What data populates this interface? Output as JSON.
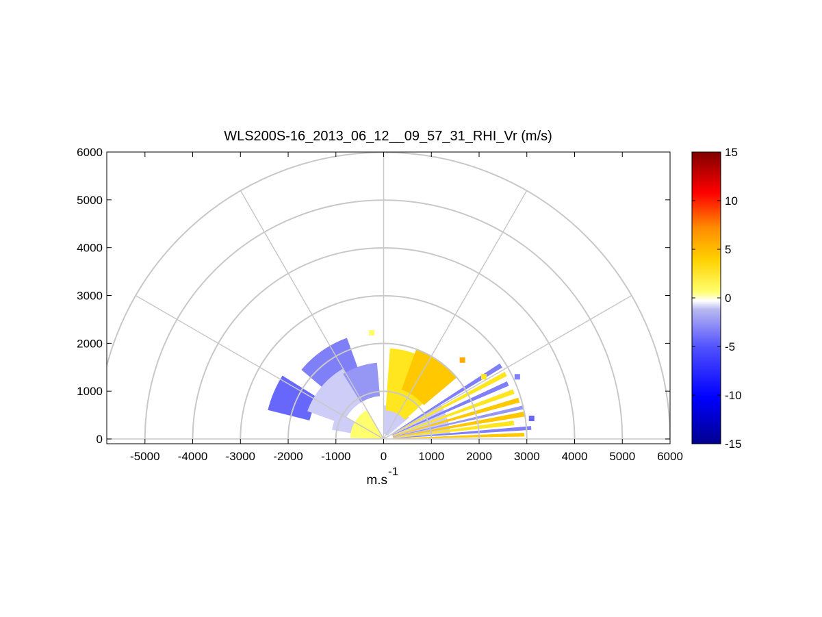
{
  "chart_data": {
    "type": "heatmap",
    "subtype": "polar-rhi-scan",
    "title": "WLS200S-16_2013_06_12__09_57_31_RHI_Vr (m/s)",
    "xlabel_base": "m.s",
    "xlabel_exponent": "-1",
    "xlim": [
      -5800,
      6000
    ],
    "ylim": [
      -100,
      6000
    ],
    "x_ticks": [
      -5000,
      -4000,
      -3000,
      -2000,
      -1000,
      0,
      1000,
      2000,
      3000,
      4000,
      5000,
      6000
    ],
    "x_tick_labels": [
      "-5000",
      "-4000",
      "-3000",
      "-2000",
      "-1000",
      "0",
      "1000",
      "2000",
      "3000",
      "4000",
      "5000",
      "6000"
    ],
    "y_ticks": [
      0,
      1000,
      2000,
      3000,
      4000,
      5000,
      6000
    ],
    "y_tick_labels": [
      "0",
      "1000",
      "2000",
      "3000",
      "4000",
      "5000",
      "6000"
    ],
    "polar_grid": {
      "rings": [
        1000,
        2000,
        3000,
        4000,
        5000,
        6000
      ],
      "spokes_deg": [
        0,
        30,
        60,
        90,
        120,
        150,
        180
      ]
    },
    "colorbar": {
      "min": -15,
      "max": 15,
      "ticks": [
        15,
        10,
        5,
        0,
        -5,
        -10,
        -15
      ],
      "tick_labels": [
        "15",
        "10",
        "5",
        "0",
        "-5",
        "-10",
        "-15"
      ]
    },
    "sectors": [
      {
        "name": "far-left-blue",
        "az_from": 148,
        "az_to": 166,
        "r_from": 1600,
        "r_to": 2500,
        "vr": -4
      },
      {
        "name": "upper-left-blue",
        "az_from": 110,
        "az_to": 140,
        "r_from": 1500,
        "r_to": 2250,
        "vr": -3
      },
      {
        "name": "mid-left-lightblue",
        "az_from": 120,
        "az_to": 160,
        "r_from": 900,
        "r_to": 1700,
        "vr": -1
      },
      {
        "name": "inner-left-blue",
        "az_from": 95,
        "az_to": 122,
        "r_from": 900,
        "r_to": 1600,
        "vr": -2
      },
      {
        "name": "low-left-lightblue",
        "az_from": 150,
        "az_to": 170,
        "r_from": 400,
        "r_to": 1100,
        "vr": -1
      },
      {
        "name": "near-left-yellow",
        "az_from": 120,
        "az_to": 178,
        "r_from": 0,
        "r_to": 700,
        "vr": 1
      },
      {
        "name": "near-center-lightblue",
        "az_from": 40,
        "az_to": 90,
        "r_from": 100,
        "r_to": 700,
        "vr": -1
      },
      {
        "name": "upper-right-yellow",
        "az_from": 42,
        "az_to": 86,
        "r_from": 600,
        "r_to": 1900,
        "vr": 2
      },
      {
        "name": "upper-right-orange",
        "az_from": 40,
        "az_to": 70,
        "r_from": 1100,
        "r_to": 2000,
        "vr": 3
      },
      {
        "name": "low-right-lightblue",
        "az_from": 5,
        "az_to": 32,
        "r_from": 200,
        "r_to": 1400,
        "vr": -1
      },
      {
        "name": "beam-1",
        "az_from": 31,
        "az_to": 33,
        "r_from": 200,
        "r_to": 2900,
        "vr": -3
      },
      {
        "name": "beam-2",
        "az_from": 27,
        "az_to": 29,
        "r_from": 200,
        "r_to": 2900,
        "vr": 2
      },
      {
        "name": "beam-3",
        "az_from": 23,
        "az_to": 25,
        "r_from": 200,
        "r_to": 2850,
        "vr": -3
      },
      {
        "name": "beam-4",
        "az_from": 19,
        "az_to": 21,
        "r_from": 200,
        "r_to": 2900,
        "vr": 2
      },
      {
        "name": "beam-5",
        "az_from": 15,
        "az_to": 17,
        "r_from": 200,
        "r_to": 2950,
        "vr": 3
      },
      {
        "name": "beam-6",
        "az_from": 12,
        "az_to": 13.5,
        "r_from": 200,
        "r_to": 3000,
        "vr": -2
      },
      {
        "name": "beam-7",
        "az_from": 9,
        "az_to": 11,
        "r_from": 200,
        "r_to": 3000,
        "vr": 3
      },
      {
        "name": "beam-8",
        "az_from": 6,
        "az_to": 8,
        "r_from": 200,
        "r_to": 2750,
        "vr": 2
      },
      {
        "name": "beam-9",
        "az_from": 3.5,
        "az_to": 5,
        "r_from": 200,
        "r_to": 3100,
        "vr": -3
      },
      {
        "name": "beam-10",
        "az_from": 1,
        "az_to": 2.5,
        "r_from": 200,
        "r_to": 2950,
        "vr": 3
      }
    ],
    "isolated_cells": [
      {
        "x": -250,
        "y": 2220,
        "vr": 1
      },
      {
        "x": 1650,
        "y": 1650,
        "vr": 4
      },
      {
        "x": 2100,
        "y": 1300,
        "vr": 2
      },
      {
        "x": 2800,
        "y": 1300,
        "vr": -3
      },
      {
        "x": 3100,
        "y": 430,
        "vr": -4
      }
    ]
  }
}
